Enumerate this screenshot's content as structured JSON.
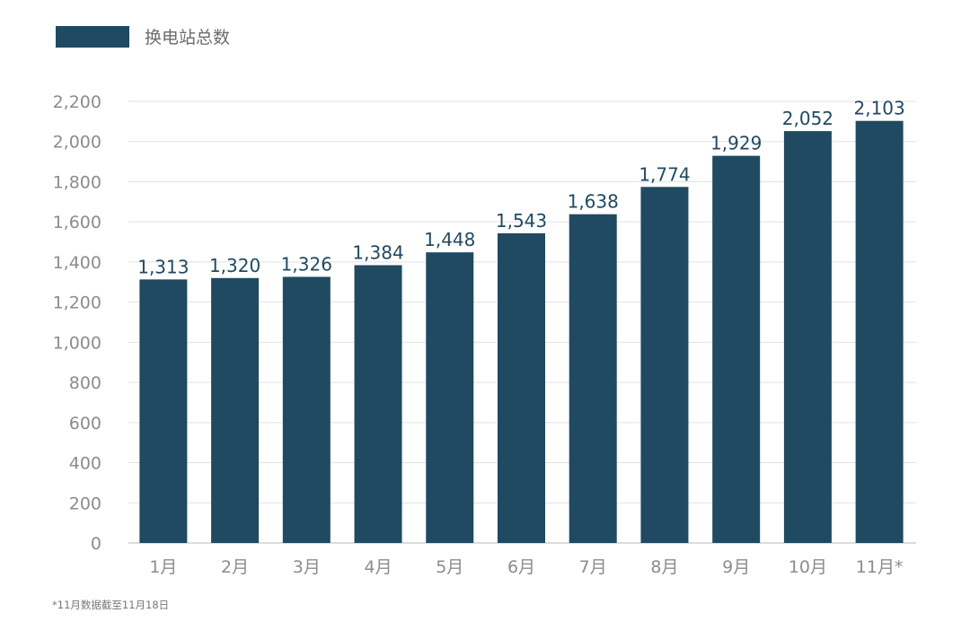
{
  "colors": {
    "bar": "#1f4a62",
    "grid": "#e2e2e2",
    "axis": "#cfcfcf",
    "tick_label": "#8c8c8c",
    "data_label": "#1f4a62"
  },
  "legend": {
    "label": "换电站总数"
  },
  "footnote": "*11月数据截至11月18日",
  "chart_data": {
    "type": "bar",
    "title": "",
    "xlabel": "",
    "ylabel": "",
    "categories": [
      "1月",
      "2月",
      "3月",
      "4月",
      "5月",
      "6月",
      "7月",
      "8月",
      "9月",
      "10月",
      "11月*"
    ],
    "series": [
      {
        "name": "换电站总数",
        "values": [
          1313,
          1320,
          1326,
          1384,
          1448,
          1543,
          1638,
          1774,
          1929,
          2052,
          2103
        ]
      }
    ],
    "data_labels": [
      "1,313",
      "1,320",
      "1,326",
      "1,384",
      "1,448",
      "1,543",
      "1,638",
      "1,774",
      "1,929",
      "2,052",
      "2,103"
    ],
    "ylim": [
      0,
      2200
    ],
    "y_ticks": [
      0,
      200,
      400,
      600,
      800,
      1000,
      1200,
      1400,
      1600,
      1800,
      2000,
      2200
    ],
    "y_tick_labels": [
      "0",
      "200",
      "400",
      "600",
      "800",
      "1,000",
      "1,200",
      "1,400",
      "1,600",
      "1,800",
      "2,000",
      "2,200"
    ],
    "grid": true,
    "legend_position": "top-left"
  }
}
